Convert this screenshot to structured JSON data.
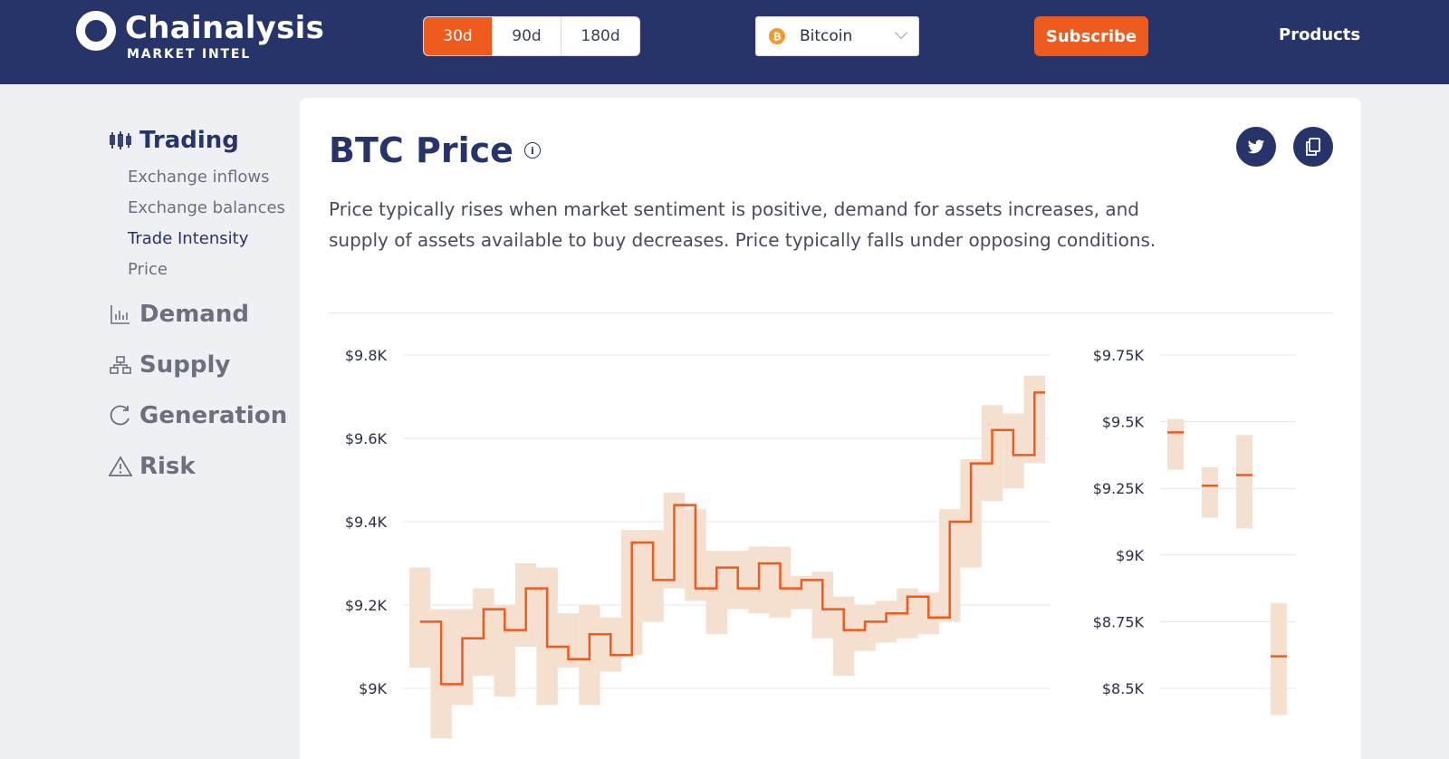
{
  "header": {
    "brand_name": "Chainalysis",
    "brand_sub": "MARKET INTEL",
    "ranges": [
      "30d",
      "90d",
      "180d"
    ],
    "active_range": "30d",
    "asset": "Bitcoin",
    "subscribe_label": "Subscribe",
    "products_label": "Products",
    "accent": "#ef5b1f",
    "navy": "#273469"
  },
  "sidebar": {
    "sections": [
      {
        "label": "Trading",
        "icon": "candlestick-icon",
        "items": [
          "Exchange inflows",
          "Exchange balances",
          "Trade Intensity",
          "Price"
        ]
      },
      {
        "label": "Demand",
        "icon": "bar-chart-icon"
      },
      {
        "label": "Supply",
        "icon": "hierarchy-icon"
      },
      {
        "label": "Generation",
        "icon": "refresh-icon"
      },
      {
        "label": "Risk",
        "icon": "warning-icon"
      }
    ],
    "current_item": "Trade Intensity"
  },
  "card": {
    "title": "BTC Price",
    "description": "Price typically rises when market sentiment is positive, demand for assets increases, and supply of assets available to buy decreases. Price typically falls under opposing conditions."
  },
  "chart_data": [
    {
      "type": "line",
      "ylabels": [
        "$9.8K",
        "$9.6K",
        "$9.4K",
        "$9.2K",
        "$9K"
      ],
      "ylim": [
        8.88,
        9.84
      ],
      "series": [
        {
          "values": [
            9.16,
            9.01,
            9.12,
            9.19,
            9.14,
            9.24,
            9.1,
            9.07,
            9.13,
            9.08,
            9.35,
            9.26,
            9.44,
            9.24,
            9.29,
            9.24,
            9.3,
            9.24,
            9.26,
            9.19,
            9.14,
            9.16,
            9.18,
            9.22,
            9.17,
            9.4,
            9.54,
            9.62,
            9.56,
            9.71
          ]
        }
      ],
      "band_low": [
        9.05,
        8.88,
        8.96,
        9.03,
        8.98,
        9.1,
        8.96,
        9.05,
        8.96,
        9.04,
        9.08,
        9.16,
        9.24,
        9.21,
        9.13,
        9.19,
        9.18,
        9.17,
        9.19,
        9.12,
        9.03,
        9.09,
        9.11,
        9.12,
        9.13,
        9.16,
        9.29,
        9.45,
        9.48,
        9.54
      ],
      "band_high": [
        9.29,
        9.19,
        9.19,
        9.24,
        9.2,
        9.3,
        9.29,
        9.18,
        9.2,
        9.17,
        9.38,
        9.38,
        9.47,
        9.43,
        9.33,
        9.33,
        9.34,
        9.34,
        9.27,
        9.28,
        9.22,
        9.2,
        9.21,
        9.24,
        9.23,
        9.43,
        9.55,
        9.68,
        9.66,
        9.75
      ],
      "grid": true,
      "line_color": "#ef5b1f",
      "band_color": "#f5dfcf"
    },
    {
      "type": "bar",
      "ylabels": [
        "$9.75K",
        "$9.5K",
        "$9.25K",
        "$9K",
        "$8.75K",
        "$8.5K"
      ],
      "ylim": [
        8.5,
        9.75
      ],
      "values": [
        9.46,
        9.26,
        9.3,
        8.62
      ],
      "low": [
        9.32,
        9.14,
        9.1,
        8.4
      ],
      "high": [
        9.51,
        9.33,
        9.45,
        8.82
      ],
      "grid": true
    }
  ]
}
